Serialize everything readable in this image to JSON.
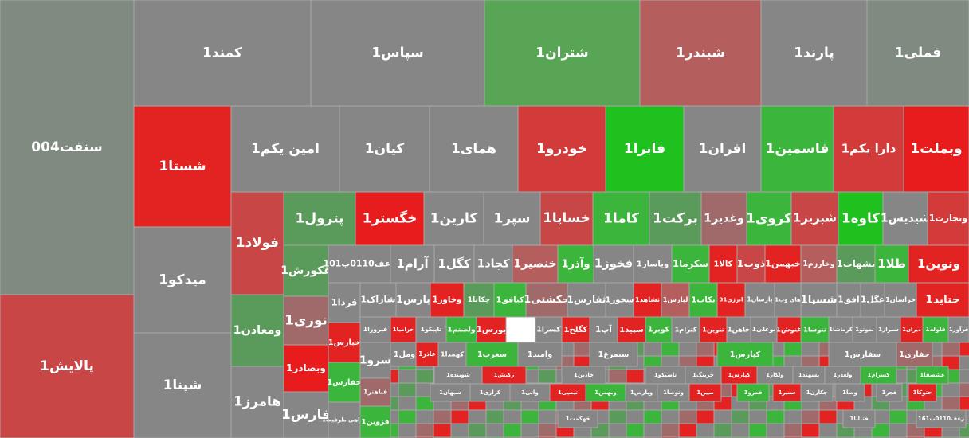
{
  "tiles": [
    {
      "label": "سنفت004",
      "color": "#7f8a80"
    },
    {
      "label": "پالایش1",
      "color": "#c94646"
    },
    {
      "label": "کمند1",
      "color": "#868686"
    },
    {
      "label": "سپاس1",
      "color": "#868686"
    },
    {
      "label": "شتران1",
      "color": "#58a655"
    },
    {
      "label": "شبندر1",
      "color": "#b45e5e"
    },
    {
      "label": "پارند1",
      "color": "#868686"
    },
    {
      "label": "فملی1",
      "color": "#7f8a80"
    },
    {
      "label": "شستا1",
      "color": "#e32222"
    },
    {
      "label": "امین یکم1",
      "color": "#868686"
    },
    {
      "label": "کیان1",
      "color": "#868686"
    },
    {
      "label": "همای1",
      "color": "#868686"
    },
    {
      "label": "خودرو1",
      "color": "#d33a3a"
    },
    {
      "label": "فابرا1",
      "color": "#1fc11f"
    },
    {
      "label": "افران1",
      "color": "#868686"
    },
    {
      "label": "فاسمین1",
      "color": "#3cb53c"
    },
    {
      "label": "دارا یکم1",
      "color": "#d33a3a"
    },
    {
      "label": "وبملت1",
      "color": "#e81c1c"
    },
    {
      "label": "میدکو1",
      "color": "#868686"
    },
    {
      "label": "شپنا1",
      "color": "#868686"
    },
    {
      "label": "فولاد1",
      "color": "#c94646"
    },
    {
      "label": "ومعادن1",
      "color": "#5a9a5a"
    },
    {
      "label": "هامرز1",
      "color": "#868686"
    },
    {
      "label": "پترول1",
      "color": "#5a9a5a"
    },
    {
      "label": "خگستر1",
      "color": "#e81c1c"
    },
    {
      "label": "کارین1",
      "color": "#868686"
    },
    {
      "label": "سپر1",
      "color": "#868686"
    },
    {
      "label": "خساپا1",
      "color": "#c94646"
    },
    {
      "label": "کاما1",
      "color": "#3cb53c"
    },
    {
      "label": "برکت1",
      "color": "#5a9a5a"
    },
    {
      "label": "وغدیر1",
      "color": "#a06a6a"
    },
    {
      "label": "کروی1",
      "color": "#3cb53c"
    },
    {
      "label": "شبریز1",
      "color": "#c94646"
    },
    {
      "label": "کاوه1",
      "color": "#1fc11f"
    },
    {
      "label": "شیدیس1",
      "color": "#868686"
    },
    {
      "label": "وتجارت1",
      "color": "#d33a3a"
    },
    {
      "label": "غکورش1",
      "color": "#5a9a5a"
    },
    {
      "label": "نوری1",
      "color": "#a06a6a"
    },
    {
      "label": "وبصادر1",
      "color": "#e81c1c"
    },
    {
      "label": "فارس1",
      "color": "#868686"
    },
    {
      "label": "زعف0110ب101",
      "color": "#868686"
    },
    {
      "label": "آرام1",
      "color": "#868686"
    },
    {
      "label": "کگل1",
      "color": "#868686"
    },
    {
      "label": "کچاد1",
      "color": "#868686"
    },
    {
      "label": "خنصیر1",
      "color": "#b45e5e"
    },
    {
      "label": "وآذر1",
      "color": "#3cb53c"
    },
    {
      "label": "فخوز1",
      "color": "#868686"
    },
    {
      "label": "ویاسار1",
      "color": "#868686"
    },
    {
      "label": "سکرما1",
      "color": "#3cb53c"
    },
    {
      "label": "کالا1",
      "color": "#e32222"
    },
    {
      "label": "ذوب1",
      "color": "#c94646"
    },
    {
      "label": "خبهمن1",
      "color": "#e32222"
    },
    {
      "label": "وخارزم1",
      "color": "#b45e5e"
    },
    {
      "label": "بشهاب1",
      "color": "#5a9a5a"
    },
    {
      "label": "طلا1",
      "color": "#3cb53c"
    },
    {
      "label": "ونوین1",
      "color": "#e32222"
    },
    {
      "label": "فردا1",
      "color": "#868686"
    },
    {
      "label": "شاراک1",
      "color": "#868686"
    },
    {
      "label": "پارس1",
      "color": "#868686"
    },
    {
      "label": "وخاور1",
      "color": "#e32222"
    },
    {
      "label": "چکاپا1",
      "color": "#5a9a5a"
    },
    {
      "label": "کیافق1",
      "color": "#3cb53c"
    },
    {
      "label": "حکشتی1",
      "color": "#a06a6a"
    },
    {
      "label": "ثفارس1",
      "color": "#868686"
    },
    {
      "label": "سخوز1",
      "color": "#868686"
    },
    {
      "label": "ثشاهد1",
      "color": "#e32222"
    },
    {
      "label": "لپارس1",
      "color": "#b45e5e"
    },
    {
      "label": "بکاب1",
      "color": "#3cb53c"
    },
    {
      "label": "انرژی31",
      "color": "#e32222"
    },
    {
      "label": "بارسان1",
      "color": "#868686"
    },
    {
      "label": "های وب1",
      "color": "#868686"
    },
    {
      "label": "شسپا1",
      "color": "#868686"
    },
    {
      "label": "افق1",
      "color": "#868686"
    },
    {
      "label": "غگل1",
      "color": "#868686"
    },
    {
      "label": "خراسان1",
      "color": "#868686"
    },
    {
      "label": "حتاید1",
      "color": "#e32222"
    },
    {
      "label": "خپارس1",
      "color": "#e32222"
    },
    {
      "label": "فیروزا1",
      "color": "#868686"
    },
    {
      "label": "خزامیا1",
      "color": "#e32222"
    },
    {
      "label": "تاپیکو1",
      "color": "#868686"
    },
    {
      "label": "ولصنم1",
      "color": "#3cb53c"
    },
    {
      "label": "بورس1",
      "color": "#e32222"
    },
    {
      "label": "کسرا1",
      "color": "#868686"
    },
    {
      "label": "کگلح1",
      "color": "#e32222"
    },
    {
      "label": "آپ1",
      "color": "#868686"
    },
    {
      "label": "سپید1",
      "color": "#e32222"
    },
    {
      "label": "کویر1",
      "color": "#3cb53c"
    },
    {
      "label": "کترام1",
      "color": "#868686"
    },
    {
      "label": "تنوین1",
      "color": "#e32222"
    },
    {
      "label": "خاهن1",
      "color": "#868686"
    },
    {
      "label": "بوعلی1",
      "color": "#868686"
    },
    {
      "label": "غنوش1",
      "color": "#e32222"
    },
    {
      "label": "تنوسا1",
      "color": "#3cb53c"
    },
    {
      "label": "کرماشا1",
      "color": "#868686"
    },
    {
      "label": "بموتو1",
      "color": "#868686"
    },
    {
      "label": "شیراز1",
      "color": "#868686"
    },
    {
      "label": "دیران1",
      "color": "#e32222"
    },
    {
      "label": "فلوله1",
      "color": "#3cb53c"
    },
    {
      "label": "فرآور1",
      "color": "#868686"
    },
    {
      "label": "حفارس1",
      "color": "#3cb53c"
    },
    {
      "label": "گواهی ظرفیت1",
      "color": "#868686"
    },
    {
      "label": "سرو1",
      "color": "#868686"
    },
    {
      "label": "فباهنر1",
      "color": "#a06a6a"
    },
    {
      "label": "قزوین1",
      "color": "#3cb53c"
    },
    {
      "label": "ومل1",
      "color": "#868686"
    },
    {
      "label": "غاذر1",
      "color": "#e32222"
    },
    {
      "label": "کهمدا1",
      "color": "#868686"
    },
    {
      "label": "سغرب1",
      "color": "#3cb53c"
    },
    {
      "label": "وامید1",
      "color": "#868686"
    },
    {
      "label": "سیمرغ1",
      "color": "#868686"
    },
    {
      "label": "کپارس1",
      "color": "#3cb53c"
    },
    {
      "label": "سفارس1",
      "color": "#868686"
    },
    {
      "label": "حفاری1",
      "color": "#a06a6a"
    },
    {
      "label": "شوینده1",
      "color": "#868686"
    },
    {
      "label": "رکیش1",
      "color": "#e32222"
    },
    {
      "label": "خاذین1",
      "color": "#868686"
    },
    {
      "label": "تاصیکو1",
      "color": "#868686"
    },
    {
      "label": "خریتگ1",
      "color": "#868686"
    },
    {
      "label": "کپارس1",
      "color": "#e32222"
    },
    {
      "label": "ولکار1",
      "color": "#868686"
    },
    {
      "label": "پسهند1",
      "color": "#868686"
    },
    {
      "label": "ولغدر1",
      "color": "#868686"
    },
    {
      "label": "کسرام1",
      "color": "#3cb53c"
    },
    {
      "label": "غشصفا1",
      "color": "#3cb53c"
    },
    {
      "label": "سبهان1",
      "color": "#868686"
    },
    {
      "label": "کرازی1",
      "color": "#868686"
    },
    {
      "label": "واتی1",
      "color": "#868686"
    },
    {
      "label": "تیمپی1",
      "color": "#e32222"
    },
    {
      "label": "وبهمن1",
      "color": "#3cb53c"
    },
    {
      "label": "وپارس1",
      "color": "#868686"
    },
    {
      "label": "وتوصا1",
      "color": "#868686"
    },
    {
      "label": "مبین1",
      "color": "#e32222"
    },
    {
      "label": "فمرو1",
      "color": "#3cb53c"
    },
    {
      "label": "سنیر1",
      "color": "#e32222"
    },
    {
      "label": "چکارن1",
      "color": "#868686"
    },
    {
      "label": "وسا1",
      "color": "#868686"
    },
    {
      "label": "فجر1",
      "color": "#868686"
    },
    {
      "label": "حتوکا1",
      "color": "#e32222"
    },
    {
      "label": "قهکمت1",
      "color": "#868686"
    },
    {
      "label": "فتنانا1",
      "color": "#868686"
    },
    {
      "label": "زعف0110ب161",
      "color": "#868686"
    }
  ]
}
